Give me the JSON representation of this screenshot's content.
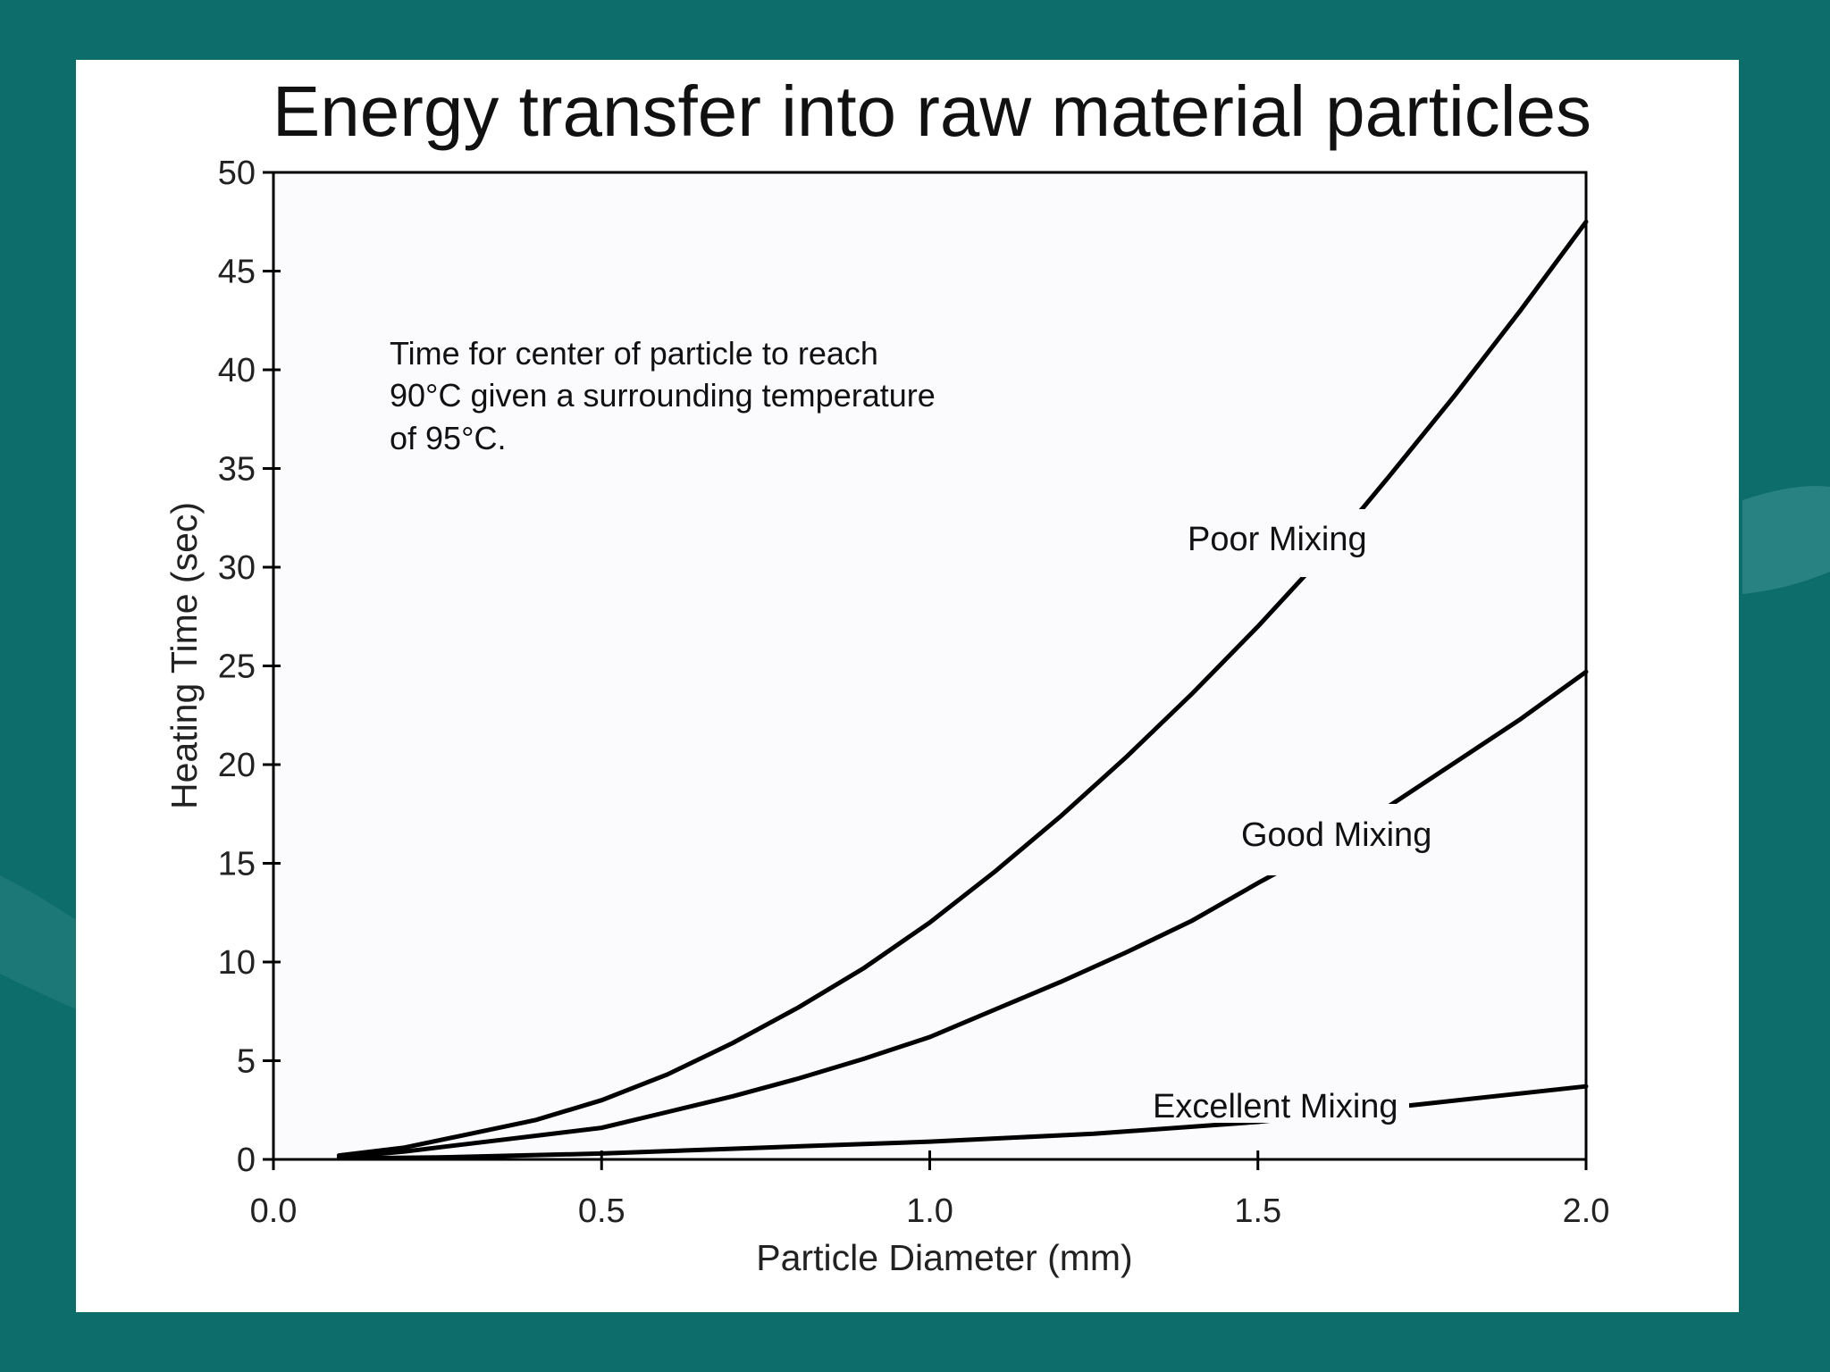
{
  "slide": {
    "background_color": "#0d6d6b",
    "panel_color": "#ffffff",
    "plot_background": "#fbfbfe"
  },
  "chart_data": {
    "type": "line",
    "title": "Energy transfer into raw material particles",
    "xlabel": "Particle Diameter (mm)",
    "ylabel": "Heating Time (sec)",
    "xlim": [
      0.0,
      2.0
    ],
    "ylim": [
      0,
      50
    ],
    "x_ticks": [
      "0.0",
      "0.5",
      "1.0",
      "1.5",
      "2.0"
    ],
    "y_ticks": [
      "0",
      "5",
      "10",
      "15",
      "20",
      "25",
      "30",
      "35",
      "40",
      "45",
      "50"
    ],
    "grid": false,
    "legend": "none (series labelled inline on the curves)",
    "annotation": [
      "Time for center of particle to reach",
      "90°C given a surrounding temperature",
      "of 95°C."
    ],
    "series": [
      {
        "name": "Poor Mixing",
        "x": [
          0.1,
          0.2,
          0.3,
          0.4,
          0.5,
          0.6,
          0.7,
          0.8,
          0.9,
          1.0,
          1.1,
          1.2,
          1.3,
          1.4,
          1.5,
          1.6,
          1.7,
          1.8,
          1.9,
          2.0
        ],
        "y": [
          0.2,
          0.6,
          1.3,
          2.0,
          3.0,
          4.3,
          5.9,
          7.7,
          9.7,
          12.0,
          14.6,
          17.4,
          20.4,
          23.6,
          27.0,
          30.6,
          34.6,
          38.7,
          43.0,
          47.5
        ]
      },
      {
        "name": "Good Mixing",
        "x": [
          0.1,
          0.2,
          0.3,
          0.4,
          0.5,
          0.6,
          0.7,
          0.8,
          0.9,
          1.0,
          1.1,
          1.2,
          1.3,
          1.4,
          1.5,
          1.6,
          1.7,
          1.8,
          1.9,
          2.0
        ],
        "y": [
          0.1,
          0.4,
          0.8,
          1.2,
          1.6,
          2.4,
          3.2,
          4.1,
          5.1,
          6.2,
          7.6,
          9.0,
          10.5,
          12.1,
          14.0,
          15.8,
          17.9,
          20.1,
          22.3,
          24.7
        ]
      },
      {
        "name": "Excellent Mixing",
        "x": [
          0.1,
          0.25,
          0.5,
          0.75,
          1.0,
          1.25,
          1.5,
          1.75,
          2.0
        ],
        "y": [
          0.05,
          0.1,
          0.3,
          0.6,
          0.9,
          1.3,
          1.9,
          2.8,
          3.7
        ]
      }
    ]
  }
}
